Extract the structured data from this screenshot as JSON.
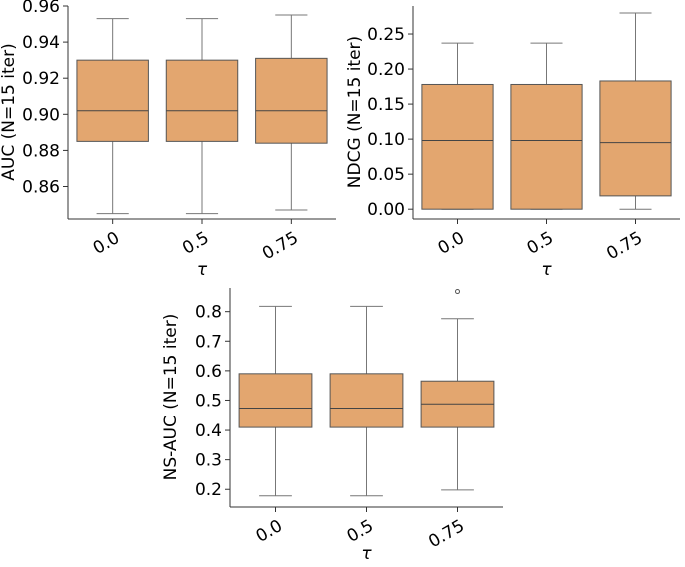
{
  "chart_data": [
    {
      "type": "box",
      "xlabel": "τ",
      "ylabel": "AUC (N=15 iter)",
      "categories": [
        "0.0",
        "0.5",
        "0.75"
      ],
      "ylim": [
        0.842,
        0.96
      ],
      "yticks": [
        0.86,
        0.88,
        0.9,
        0.92,
        0.94,
        0.96
      ],
      "ytick_labels": [
        "0.86",
        "0.88",
        "0.90",
        "0.92",
        "0.94",
        "0.96"
      ],
      "boxes": [
        {
          "whislo": 0.845,
          "q1": 0.885,
          "med": 0.902,
          "q3": 0.93,
          "whishi": 0.953,
          "fliers": []
        },
        {
          "whislo": 0.845,
          "q1": 0.885,
          "med": 0.902,
          "q3": 0.93,
          "whishi": 0.953,
          "fliers": []
        },
        {
          "whislo": 0.847,
          "q1": 0.884,
          "med": 0.902,
          "q3": 0.931,
          "whishi": 0.955,
          "fliers": []
        }
      ],
      "box_color": "#e3a66f",
      "grid": false
    },
    {
      "type": "box",
      "xlabel": "τ",
      "ylabel": "NDCG (N=15 iter)",
      "categories": [
        "0.0",
        "0.5",
        "0.75"
      ],
      "ylim": [
        -0.014,
        0.29
      ],
      "yticks": [
        0.0,
        0.05,
        0.1,
        0.15,
        0.2,
        0.25
      ],
      "ytick_labels": [
        "0.00",
        "0.05",
        "0.10",
        "0.15",
        "0.20",
        "0.25"
      ],
      "boxes": [
        {
          "whislo": 0.0,
          "q1": 0.0,
          "med": 0.098,
          "q3": 0.178,
          "whishi": 0.237,
          "fliers": []
        },
        {
          "whislo": 0.0,
          "q1": 0.0,
          "med": 0.098,
          "q3": 0.178,
          "whishi": 0.237,
          "fliers": []
        },
        {
          "whislo": 0.0,
          "q1": 0.019,
          "med": 0.095,
          "q3": 0.183,
          "whishi": 0.28,
          "fliers": []
        }
      ],
      "box_color": "#e3a66f",
      "grid": false
    },
    {
      "type": "box",
      "xlabel": "τ",
      "ylabel": "NS-AUC (N=15 iter)",
      "categories": [
        "0.0",
        "0.5",
        "0.75"
      ],
      "ylim": [
        0.14,
        0.88
      ],
      "yticks": [
        0.2,
        0.3,
        0.4,
        0.5,
        0.6,
        0.7,
        0.8
      ],
      "ytick_labels": [
        "0.2",
        "0.3",
        "0.4",
        "0.5",
        "0.6",
        "0.7",
        "0.8"
      ],
      "boxes": [
        {
          "whislo": 0.178,
          "q1": 0.41,
          "med": 0.473,
          "q3": 0.59,
          "whishi": 0.818,
          "fliers": []
        },
        {
          "whislo": 0.178,
          "q1": 0.41,
          "med": 0.473,
          "q3": 0.59,
          "whishi": 0.818,
          "fliers": []
        },
        {
          "whislo": 0.198,
          "q1": 0.41,
          "med": 0.487,
          "q3": 0.565,
          "whishi": 0.776,
          "fliers": [
            0.868
          ]
        }
      ],
      "box_color": "#e3a66f",
      "grid": false
    }
  ]
}
